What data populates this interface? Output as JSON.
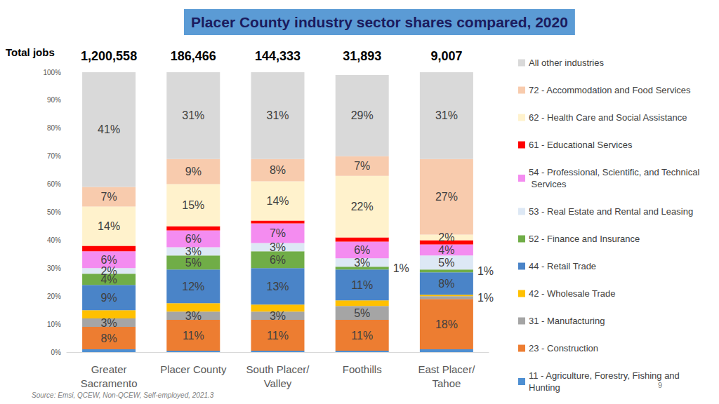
{
  "chart_data": {
    "type": "bar",
    "title": "Placer County industry sector shares compared, 2020",
    "categories": [
      "Greater\nSacramento",
      "Placer County",
      "South Placer/\nValley",
      "Foothills",
      "East Placer/\nTahoe"
    ],
    "totals_title": "Total jobs",
    "totals": [
      {
        "value": 1200558,
        "label": "1,200,558"
      },
      {
        "value": 186466,
        "label": "186,466"
      },
      {
        "value": 144333,
        "label": "144,333"
      },
      {
        "value": 31893,
        "label": "31,893"
      },
      {
        "value": 9007,
        "label": "9,007"
      }
    ],
    "stacked": true,
    "data_labels": true,
    "grid": false,
    "legend": "right",
    "ylim": [
      0,
      100
    ],
    "yticks": [
      {
        "value": 0,
        "label": "0%"
      },
      {
        "value": 10,
        "label": "10%"
      },
      {
        "value": 20,
        "label": "20%"
      },
      {
        "value": 30,
        "label": "30%"
      },
      {
        "value": 40,
        "label": "40%"
      },
      {
        "value": 50,
        "label": "50%"
      },
      {
        "value": 60,
        "label": "60%"
      },
      {
        "value": 70,
        "label": "70%"
      },
      {
        "value": 80,
        "label": "80%"
      },
      {
        "value": 90,
        "label": "90%"
      },
      {
        "value": 100,
        "label": "100%"
      }
    ],
    "series": [
      {
        "name": "11 - Agriculture, Forestry, Fishing and Hunting",
        "color": "#4e8fd2",
        "values": [
          1,
          0.5,
          0.5,
          0.5,
          1
        ],
        "value_labels": [
          null,
          null,
          null,
          null,
          null
        ]
      },
      {
        "name": "23 - Construction",
        "color": "#ed7d31",
        "values": [
          8,
          11,
          11,
          11,
          18
        ],
        "value_labels": [
          "8%",
          "11%",
          "11%",
          "11%",
          "18%"
        ]
      },
      {
        "name": "31 - Manufacturing",
        "color": "#a5a5a5",
        "values": [
          3,
          3,
          3,
          5,
          1
        ],
        "value_labels": [
          "3%",
          "3%",
          "3%",
          "5%",
          "1%"
        ]
      },
      {
        "name": "42 - Wholesale Trade",
        "color": "#ffc000",
        "values": [
          3,
          3,
          2.5,
          2,
          0.5
        ],
        "value_labels": [
          null,
          null,
          null,
          null,
          null
        ]
      },
      {
        "name": "44 - Retail Trade",
        "color": "#4a84c8",
        "values": [
          9,
          12,
          13,
          11,
          8
        ],
        "value_labels": [
          "9%",
          "12%",
          "13%",
          "11%",
          "8%"
        ]
      },
      {
        "name": "52 - Finance and Insurance",
        "color": "#70ad47",
        "values": [
          4,
          5,
          6,
          1,
          1
        ],
        "value_labels": [
          "4%",
          "5%",
          "6%",
          "1%",
          "1%"
        ]
      },
      {
        "name": "53 - Real Estate and Rental and Leasing",
        "color": "#dde8f5",
        "values": [
          2,
          3,
          3,
          3,
          5
        ],
        "value_labels": [
          "2%",
          "3%",
          "3%",
          "3%",
          "5%"
        ]
      },
      {
        "name": "54 - Professional, Scientific, and Technical Services",
        "color": "#f48cf0",
        "values": [
          6,
          6,
          7,
          6,
          4
        ],
        "value_labels": [
          "6%",
          "6%",
          "7%",
          "6%",
          "4%"
        ]
      },
      {
        "name": "61 - Educational Services",
        "color": "#ff0000",
        "values": [
          2,
          1.5,
          1,
          1.5,
          1.5
        ],
        "value_labels": [
          null,
          null,
          null,
          null,
          null
        ]
      },
      {
        "name": "62 - Health Care and Social Assistance",
        "color": "#fff2cc",
        "values": [
          14,
          15,
          14,
          22,
          2
        ],
        "value_labels": [
          "14%",
          "15%",
          "14%",
          "22%",
          "2%"
        ]
      },
      {
        "name": "72 - Accommodation and Food Services",
        "color": "#f8cbad",
        "values": [
          7,
          9,
          8,
          7,
          27
        ],
        "value_labels": [
          "7%",
          "9%",
          "8%",
          "7%",
          "27%"
        ]
      },
      {
        "name": "All other industries",
        "color": "#d9d9d9",
        "values": [
          41,
          31,
          31,
          29,
          31
        ],
        "value_labels": [
          "41%",
          "31%",
          "31%",
          "29%",
          "31%"
        ]
      }
    ],
    "source": "Source: Emsi, QCEW, Non-QCEW, Self-employed, 2021.3",
    "page_number": "9"
  }
}
